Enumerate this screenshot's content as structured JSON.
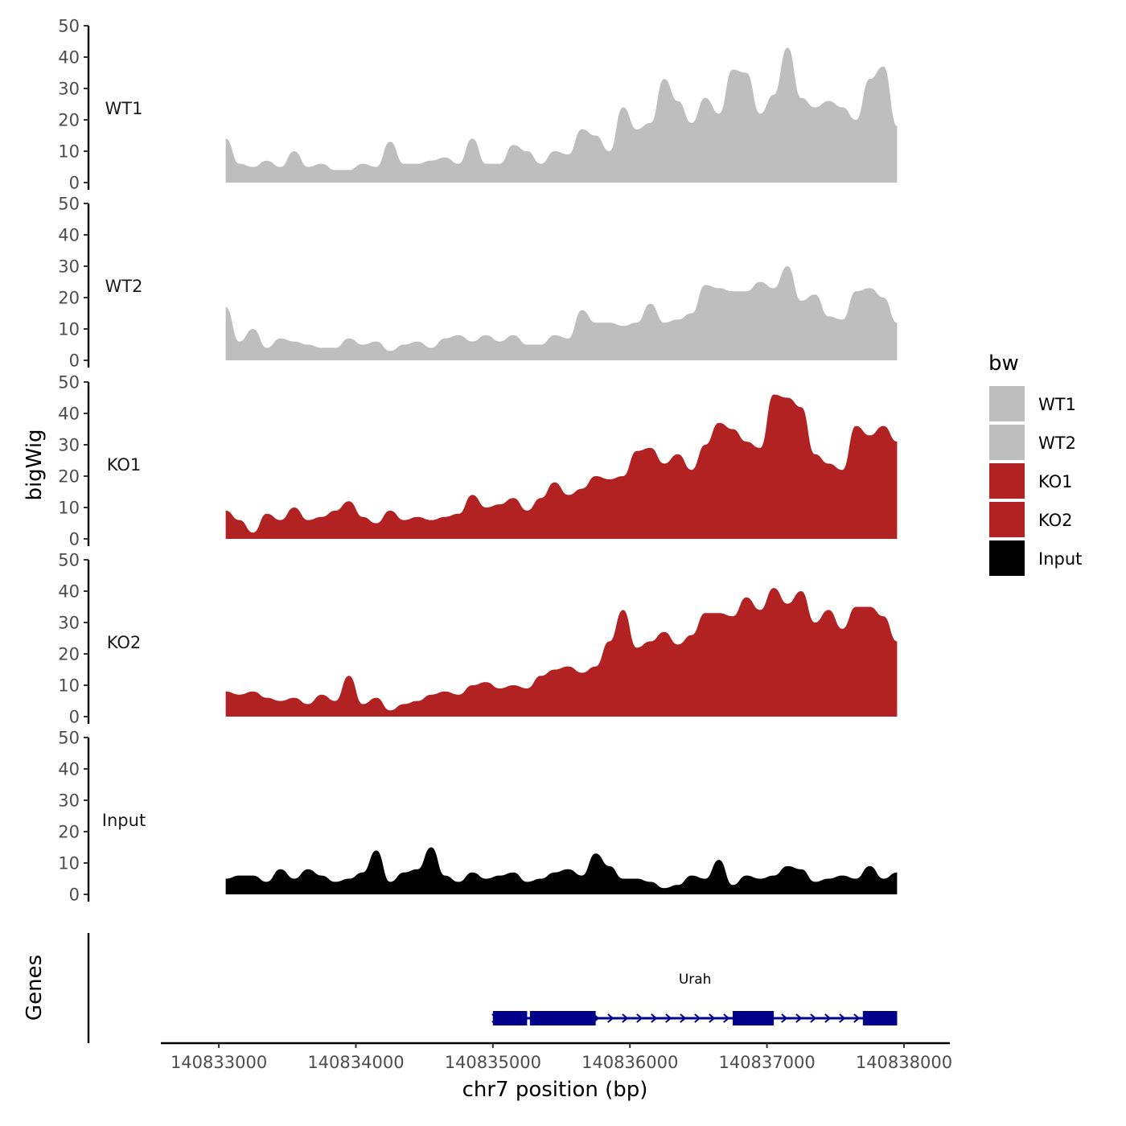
{
  "chart_data": {
    "type": "area",
    "title": "",
    "xlabel": "chr7 position (bp)",
    "ylabel": "bigWig",
    "gene_track_label": "Genes",
    "xlim": [
      140832800,
      140838100
    ],
    "xticks": [
      140833000,
      140834000,
      140835000,
      140836000,
      140837000,
      140838000
    ],
    "xtick_labels": [
      "140833000",
      "140834000",
      "140835000",
      "140836000",
      "140837000",
      "140838000"
    ],
    "ylim": [
      0,
      50
    ],
    "yticks": [
      0,
      10,
      20,
      30,
      40,
      50
    ],
    "ytick_labels": [
      "0",
      "10",
      "20",
      "30",
      "40",
      "50"
    ],
    "legend": {
      "title": "bw",
      "position": "right",
      "entries": [
        {
          "label": "WT1",
          "color": "#bebebe"
        },
        {
          "label": "WT2",
          "color": "#bebebe"
        },
        {
          "label": "KO1",
          "color": "#b22222"
        },
        {
          "label": "KO2",
          "color": "#b22222"
        },
        {
          "label": "Input",
          "color": "#000000"
        }
      ]
    },
    "x": [
      140833050,
      140833150,
      140833250,
      140833350,
      140833450,
      140833550,
      140833650,
      140833750,
      140833850,
      140833950,
      140834050,
      140834150,
      140834250,
      140834350,
      140834450,
      140834550,
      140834650,
      140834750,
      140834850,
      140834950,
      140835050,
      140835150,
      140835250,
      140835350,
      140835450,
      140835550,
      140835650,
      140835750,
      140835850,
      140835950,
      140836050,
      140836150,
      140836250,
      140836350,
      140836450,
      140836550,
      140836650,
      140836750,
      140836850,
      140836950,
      140837050,
      140837150,
      140837250,
      140837350,
      140837450,
      140837550,
      140837650,
      140837750,
      140837850,
      140837950
    ],
    "series": [
      {
        "name": "WT1",
        "color": "#bebebe",
        "values": [
          14,
          6,
          5,
          7,
          5,
          10,
          5,
          6,
          4,
          4,
          6,
          5,
          13,
          6,
          6,
          7,
          8,
          6,
          14,
          6,
          6,
          12,
          10,
          6,
          10,
          9,
          17,
          15,
          10,
          24,
          17,
          19,
          33,
          26,
          19,
          27,
          22,
          36,
          35,
          22,
          28,
          43,
          27,
          24,
          26,
          24,
          20,
          33,
          37,
          18
        ]
      },
      {
        "name": "WT2",
        "color": "#bebebe",
        "values": [
          17,
          6,
          10,
          4,
          7,
          6,
          5,
          4,
          4,
          7,
          5,
          6,
          3,
          5,
          6,
          4,
          7,
          8,
          6,
          8,
          6,
          8,
          5,
          5,
          8,
          7,
          16,
          12,
          12,
          11,
          12,
          18,
          12,
          13,
          15,
          24,
          23,
          22,
          22,
          25,
          23,
          30,
          19,
          21,
          14,
          13,
          22,
          23,
          20,
          12
        ]
      },
      {
        "name": "KO1",
        "color": "#b22222",
        "values": [
          9,
          6,
          2,
          8,
          6,
          10,
          6,
          7,
          9,
          12,
          7,
          5,
          9,
          6,
          7,
          6,
          7,
          8,
          14,
          10,
          11,
          13,
          9,
          13,
          18,
          14,
          16,
          20,
          19,
          20,
          28,
          29,
          24,
          27,
          22,
          30,
          37,
          35,
          31,
          29,
          46,
          45,
          42,
          27,
          24,
          22,
          36,
          33,
          36,
          31
        ]
      },
      {
        "name": "KO2",
        "color": "#b22222",
        "values": [
          8,
          7,
          8,
          6,
          5,
          6,
          4,
          7,
          5,
          13,
          4,
          6,
          2,
          4,
          5,
          7,
          8,
          7,
          10,
          11,
          9,
          10,
          9,
          13,
          15,
          16,
          14,
          16,
          24,
          34,
          22,
          24,
          27,
          23,
          26,
          33,
          33,
          32,
          38,
          34,
          41,
          36,
          40,
          30,
          34,
          28,
          35,
          35,
          32,
          24
        ]
      },
      {
        "name": "Input",
        "color": "#000000",
        "values": [
          5,
          6,
          6,
          4,
          8,
          5,
          8,
          6,
          4,
          5,
          7,
          14,
          4,
          7,
          8,
          15,
          6,
          4,
          7,
          5,
          6,
          7,
          4,
          5,
          7,
          8,
          6,
          13,
          9,
          5,
          5,
          4,
          2,
          3,
          6,
          5,
          11,
          3,
          6,
          5,
          6,
          9,
          8,
          4,
          5,
          6,
          5,
          9,
          5,
          7
        ]
      }
    ],
    "genes": [
      {
        "name": "Urah",
        "strand": "+",
        "start": 140835000,
        "end": 140837950,
        "color": "#00008b",
        "exons": [
          [
            140835000,
            140835250
          ],
          [
            140835270,
            140835750
          ],
          [
            140836750,
            140837050
          ],
          [
            140837700,
            140837950
          ]
        ]
      }
    ]
  }
}
